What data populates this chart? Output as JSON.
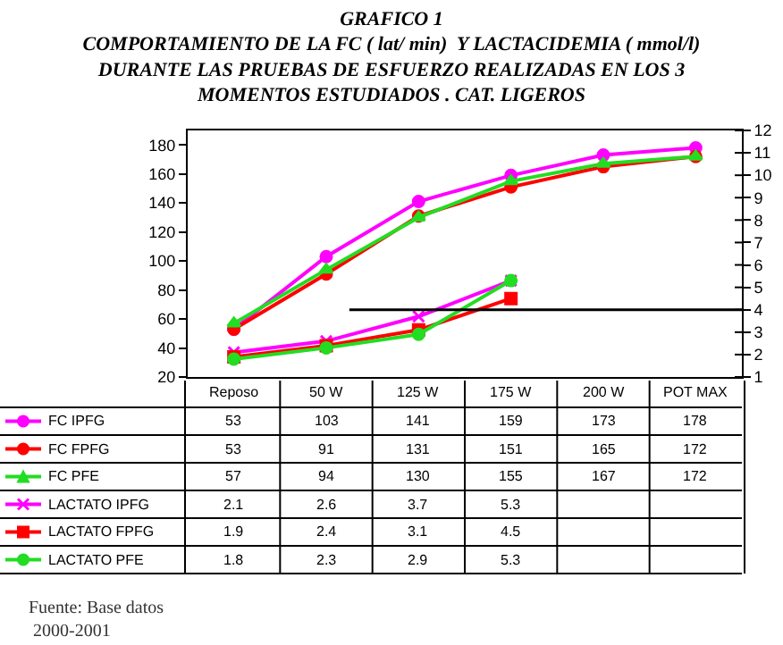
{
  "chart_data": {
    "type": "line",
    "title": "GRAFICO 1\nCOMPORTAMIENTO DE LA FC ( lat/ min)  Y LACTACIDEMIA ( mmol/l)\nDURANTE LAS PRUEBAS DE ESFUERZO REALIZADAS EN LOS 3\nMOMENTOS ESTUDIADOS . CAT. LIGEROS",
    "categories": [
      "Reposo",
      "50 W",
      "125 W",
      "175 W",
      "200 W",
      "POT MAX"
    ],
    "series": [
      {
        "name": "FC IPFG",
        "color": "#ff00ff",
        "marker": "circle",
        "values": [
          53,
          103,
          141,
          159,
          173,
          178
        ]
      },
      {
        "name": "FC FPFG",
        "color": "#ff0000",
        "marker": "circle",
        "values": [
          53,
          91,
          131,
          151,
          165,
          172
        ]
      },
      {
        "name": "FC PFE",
        "color": "#22dd22",
        "marker": "triangle",
        "values": [
          57,
          94,
          130,
          155,
          167,
          172
        ]
      },
      {
        "name": "LACTATO IPFG",
        "color": "#ff00ff",
        "marker": "cross",
        "axis": "y2",
        "values": [
          2.1,
          2.6,
          3.7,
          5.3,
          null,
          null
        ]
      },
      {
        "name": "LACTATO FPFG",
        "color": "#ff0000",
        "marker": "square",
        "axis": "y2",
        "values": [
          1.9,
          2.4,
          3.1,
          4.5,
          null,
          null
        ]
      },
      {
        "name": "LACTATO PFE",
        "color": "#22dd22",
        "marker": "circle",
        "axis": "y2",
        "values": [
          1.8,
          2.3,
          2.9,
          5.3,
          null,
          null
        ]
      }
    ],
    "ylim": [
      20,
      190
    ],
    "yticks": [
      20,
      40,
      60,
      80,
      100,
      120,
      140,
      160,
      180
    ],
    "y2lim": [
      1,
      12
    ],
    "y2ticks": [
      1,
      2,
      3,
      4,
      5,
      6,
      7,
      8,
      9,
      10,
      11,
      12
    ],
    "ref_lines": [
      {
        "axis": "y2",
        "value": 4,
        "color": "#000000"
      }
    ],
    "data_labels": true,
    "grid": false,
    "legend": "left",
    "annotations": [
      "Fuente: Base datos\n 2000-2001"
    ]
  }
}
